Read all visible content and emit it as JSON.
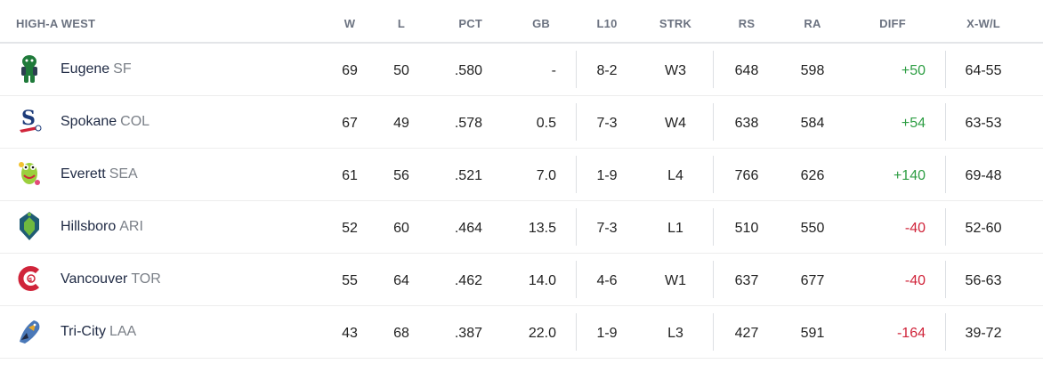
{
  "header": {
    "division": "HIGH-A WEST",
    "columns": [
      "W",
      "L",
      "PCT",
      "GB",
      "L10",
      "STRK",
      "RS",
      "RA",
      "DIFF",
      "X-W/L"
    ]
  },
  "teams": [
    {
      "city": "Eugene",
      "org": "SF",
      "logo": "eugene-emeralds-logo",
      "w": "69",
      "l": "50",
      "pct": ".580",
      "gb": "-",
      "l10": "8-2",
      "strk": "W3",
      "rs": "648",
      "ra": "598",
      "diff": "+50",
      "xwl": "64-55",
      "diff_sign": "pos"
    },
    {
      "city": "Spokane",
      "org": "COL",
      "logo": "spokane-indians-logo",
      "w": "67",
      "l": "49",
      "pct": ".578",
      "gb": "0.5",
      "l10": "7-3",
      "strk": "W4",
      "rs": "638",
      "ra": "584",
      "diff": "+54",
      "xwl": "63-53",
      "diff_sign": "pos"
    },
    {
      "city": "Everett",
      "org": "SEA",
      "logo": "everett-aquasox-logo",
      "w": "61",
      "l": "56",
      "pct": ".521",
      "gb": "7.0",
      "l10": "1-9",
      "strk": "L4",
      "rs": "766",
      "ra": "626",
      "diff": "+140",
      "xwl": "69-48",
      "diff_sign": "pos"
    },
    {
      "city": "Hillsboro",
      "org": "ARI",
      "logo": "hillsboro-hops-logo",
      "w": "52",
      "l": "60",
      "pct": ".464",
      "gb": "13.5",
      "l10": "7-3",
      "strk": "L1",
      "rs": "510",
      "ra": "550",
      "diff": "-40",
      "xwl": "52-60",
      "diff_sign": "neg"
    },
    {
      "city": "Vancouver",
      "org": "TOR",
      "logo": "vancouver-canadians-logo",
      "w": "55",
      "l": "64",
      "pct": ".462",
      "gb": "14.0",
      "l10": "4-6",
      "strk": "W1",
      "rs": "637",
      "ra": "677",
      "diff": "-40",
      "xwl": "56-63",
      "diff_sign": "neg"
    },
    {
      "city": "Tri-City",
      "org": "LAA",
      "logo": "tri-city-dust-devils-logo",
      "w": "43",
      "l": "68",
      "pct": ".387",
      "gb": "22.0",
      "l10": "1-9",
      "strk": "L3",
      "rs": "427",
      "ra": "591",
      "diff": "-164",
      "xwl": "39-72",
      "diff_sign": "neg"
    }
  ],
  "colors": {
    "positive": "#2e9e44",
    "negative": "#d0243a",
    "header_text": "#6b7280"
  }
}
